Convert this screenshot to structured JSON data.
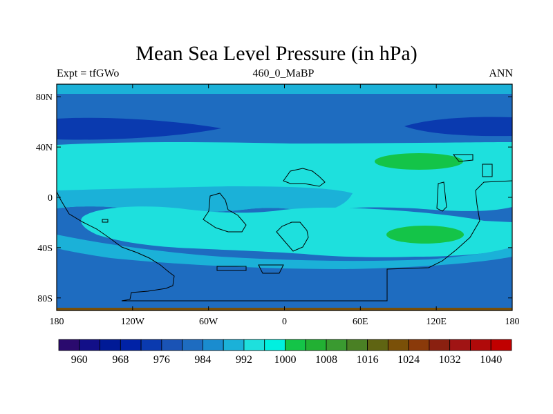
{
  "title": "Mean Sea Level Pressure (in hPa)",
  "subtitle_left": "Expt = tfGWo",
  "subtitle_center": "460_0_MaBP",
  "subtitle_right": "ANN",
  "lat_ticks": [
    {
      "value": 80,
      "label": "80N"
    },
    {
      "value": 40,
      "label": "40N"
    },
    {
      "value": 0,
      "label": "0"
    },
    {
      "value": -40,
      "label": "40S"
    },
    {
      "value": -80,
      "label": "80S"
    }
  ],
  "lon_ticks": [
    {
      "value": -180,
      "label": "180"
    },
    {
      "value": -120,
      "label": "120W"
    },
    {
      "value": -60,
      "label": "60W"
    },
    {
      "value": 0,
      "label": "0"
    },
    {
      "value": 60,
      "label": "60E"
    },
    {
      "value": 120,
      "label": "120E"
    },
    {
      "value": 180,
      "label": "180"
    }
  ],
  "colorbar": {
    "colors": [
      "#2a0a6e",
      "#120f88",
      "#001a96",
      "#0022a6",
      "#0a3aaf",
      "#1a53b5",
      "#1e6cc0",
      "#1a8ccf",
      "#1bb1d8",
      "#1ee0dd",
      "#00f0e0",
      "#14c448",
      "#22b033",
      "#3a9a30",
      "#4a8024",
      "#5f6412",
      "#7a5008",
      "#8a3a0a",
      "#8a2010",
      "#a01414",
      "#b00a0a",
      "#c00000"
    ],
    "labels": [
      "960",
      "968",
      "976",
      "984",
      "992",
      "1000",
      "1008",
      "1016",
      "1024",
      "1032",
      "1040"
    ]
  }
}
